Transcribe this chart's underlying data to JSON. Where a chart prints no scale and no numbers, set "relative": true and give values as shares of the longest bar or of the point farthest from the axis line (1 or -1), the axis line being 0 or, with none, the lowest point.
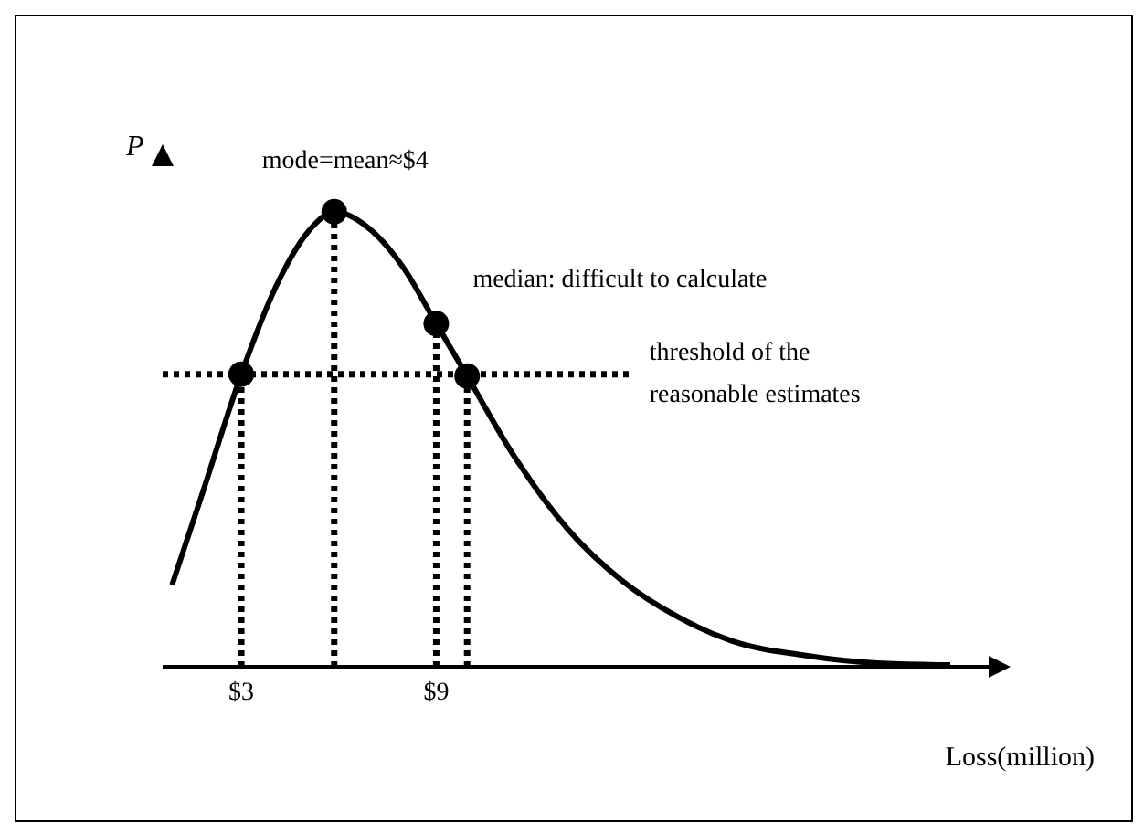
{
  "chart_data": {
    "type": "line",
    "relative": true,
    "ylabel": "P",
    "xlabel": "Loss(million)",
    "xlim": [
      0.58,
      26
    ],
    "xticks": [
      {
        "value": 3,
        "label": "$3"
      },
      {
        "value": 9,
        "label": "$9"
      }
    ],
    "series": [
      {
        "type": "line",
        "color": "#000000",
        "line_style": "solid",
        "marker": "none",
        "x": [
          0.87,
          1.82,
          3,
          4.07,
          5.19,
          5.86,
          6.87,
          7.99,
          9,
          9.95,
          11.36,
          13.04,
          14.72,
          16.4,
          18.09,
          20.33,
          22.57,
          24.82
        ],
        "values": [
          0.18,
          0.385,
          0.643,
          0.836,
          0.967,
          1,
          0.967,
          0.877,
          0.754,
          0.639,
          0.467,
          0.303,
          0.189,
          0.111,
          0.057,
          0.025,
          0.008,
          0.004
        ]
      },
      {
        "type": "line",
        "color": "#000000",
        "line_style": "dotted",
        "marker": "none",
        "x": [
          0.58,
          15
        ],
        "values": [
          0.643,
          0.643
        ]
      },
      {
        "type": "line",
        "color": "#000000",
        "line_style": "dotted",
        "marker": "none",
        "x": [
          3,
          3
        ],
        "values": [
          0,
          0.643
        ]
      },
      {
        "type": "line",
        "color": "#000000",
        "line_style": "dotted",
        "marker": "none",
        "x": [
          5.86,
          5.86
        ],
        "values": [
          0,
          1
        ]
      },
      {
        "type": "line",
        "color": "#000000",
        "line_style": "dotted",
        "marker": "none",
        "x": [
          9,
          9
        ],
        "values": [
          0,
          0.754
        ]
      },
      {
        "type": "line",
        "color": "#000000",
        "line_style": "dotted",
        "marker": "none",
        "x": [
          9.95,
          9.95
        ],
        "values": [
          0,
          0.639
        ]
      },
      {
        "type": "scatter",
        "color": "#000000",
        "marker": "circle",
        "x": [
          3,
          5.86,
          9,
          9.95
        ],
        "values": [
          0.643,
          1,
          0.754,
          0.639
        ]
      }
    ],
    "annotations": [
      {
        "text": "mode=mean≈$4",
        "x": 5.86,
        "y": 1
      },
      {
        "text": "median: difficult to calculate",
        "x": 9,
        "y": 0.754
      },
      {
        "text": "threshold of the reasonable estimates",
        "x": 15,
        "y": 0.643
      }
    ]
  }
}
